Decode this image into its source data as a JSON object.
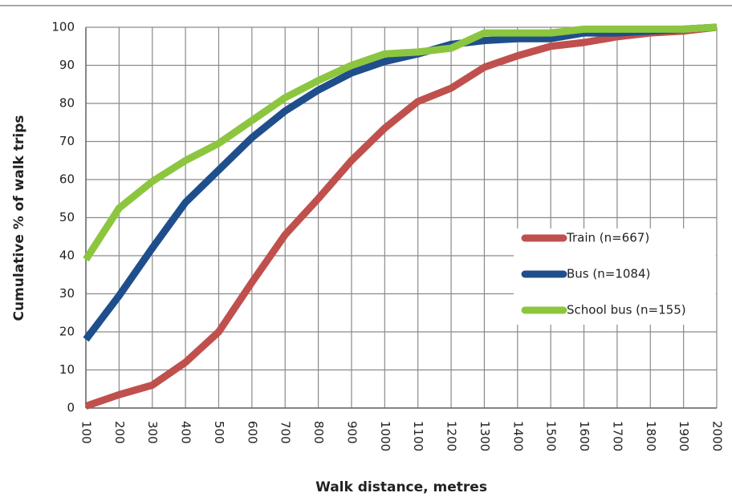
{
  "chart_data": {
    "type": "line",
    "xlabel": "Walk distance, metres",
    "ylabel": "Cumulative % of walk trips",
    "x": [
      100,
      200,
      300,
      400,
      500,
      600,
      700,
      800,
      900,
      1000,
      1100,
      1200,
      1300,
      1400,
      1500,
      1600,
      1700,
      1800,
      1900,
      2000
    ],
    "xlim": [
      100,
      2000
    ],
    "xticks": [
      100,
      200,
      300,
      400,
      500,
      600,
      700,
      800,
      900,
      1000,
      1100,
      1200,
      1300,
      1400,
      1500,
      1600,
      1700,
      1800,
      1900,
      2000
    ],
    "ylim": [
      0,
      100
    ],
    "yticks": [
      0,
      10,
      20,
      30,
      40,
      50,
      60,
      70,
      80,
      90,
      100
    ],
    "grid": true,
    "legend": "right",
    "series": [
      {
        "name": "Train (n=667)",
        "color": "#c0504d",
        "values": [
          0.5,
          3.5,
          6,
          12,
          20,
          33,
          45.5,
          55,
          65,
          73.5,
          80.5,
          84,
          89.5,
          92.5,
          95,
          96,
          97.5,
          98.5,
          99,
          100
        ]
      },
      {
        "name": "Bus (n=1084)",
        "color": "#1f4e8c",
        "values": [
          18,
          29.5,
          42,
          54,
          62.5,
          71,
          78,
          83.5,
          88,
          91,
          93,
          95.5,
          96.5,
          97,
          97,
          98.5,
          98.5,
          99,
          99.5,
          100
        ]
      },
      {
        "name": "School bus (n=155)",
        "color": "#8cc63f",
        "values": [
          39,
          52.5,
          59.5,
          65,
          69.5,
          75.5,
          81.5,
          86,
          90,
          93,
          93.5,
          94.5,
          98.5,
          98.5,
          98.5,
          99.5,
          99.5,
          99.5,
          99.5,
          100
        ]
      }
    ]
  }
}
